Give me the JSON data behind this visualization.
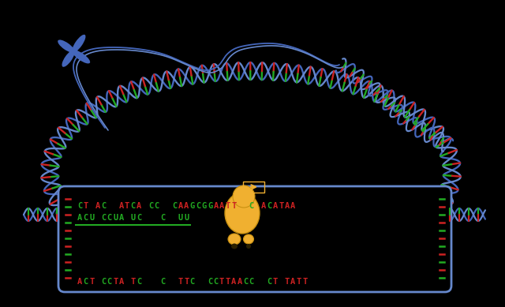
{
  "bg": "#000000",
  "blue1": "#4466bb",
  "blue2": "#6688cc",
  "blue3": "#8899cc",
  "red": "#cc2222",
  "green": "#22aa22",
  "gold": "#f0b030",
  "gold2": "#c89010",
  "box_edge": "#4466bb",
  "figw": 6.4,
  "figh": 3.89,
  "dpi": 100,
  "top_dna": "CT AC  ATCA CC  CAAGCGGAATT  C ACATAA",
  "mrna_str": "ACU CCUA UC   C  UU",
  "bot_dna": "ACT CCTA TC   C  TTC  CCTTAACC  CT TATT"
}
